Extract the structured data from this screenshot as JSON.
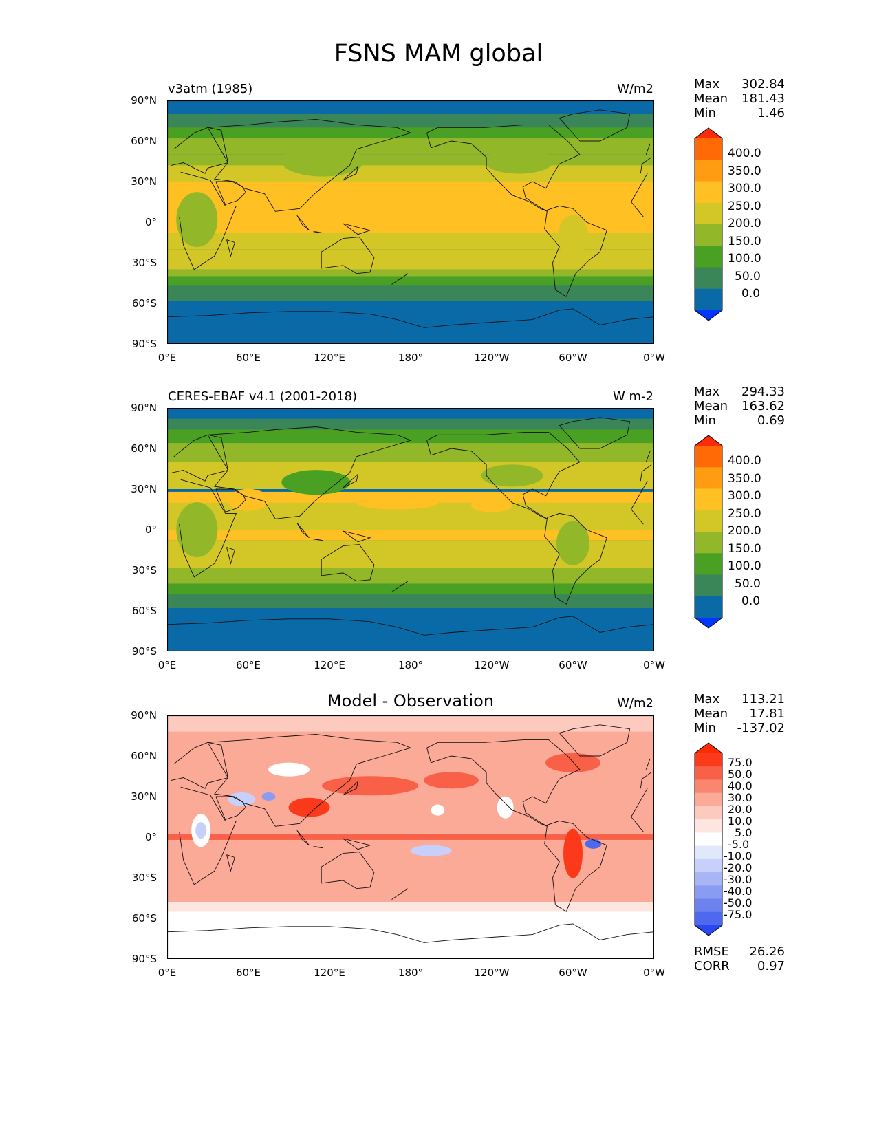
{
  "figure": {
    "title": "FSNS MAM global"
  },
  "axes": {
    "lat_labels": [
      "90°N",
      "60°N",
      "30°N",
      "0°",
      "30°S",
      "60°S",
      "90°S"
    ],
    "lon_labels": [
      "0°E",
      "60°E",
      "120°E",
      "180°",
      "120°W",
      "60°W",
      "0°W"
    ]
  },
  "panels": [
    {
      "left_title": "v3atm (1985)",
      "center_title": "",
      "units": "W/m2",
      "stats": [
        {
          "k": "Max",
          "v": "302.84"
        },
        {
          "k": "Mean",
          "v": "181.43"
        },
        {
          "k": "Min",
          "v": "1.46"
        }
      ],
      "colorbar": {
        "labels": [
          "400.0",
          "350.0",
          "300.0",
          "250.0",
          "200.0",
          "150.0",
          "100.0",
          "50.0",
          "0.0"
        ],
        "colors": [
          "#ff2a08",
          "#ff6a06",
          "#ff9c12",
          "#fec022",
          "#d2c726",
          "#92b82a",
          "#4aa022",
          "#3a8658",
          "#0a6aa8",
          "#0036ff"
        ]
      },
      "extra": []
    },
    {
      "left_title": "CERES-EBAF v4.1 (2001-2018)",
      "center_title": "",
      "units": "W m-2",
      "stats": [
        {
          "k": "Max",
          "v": "294.33"
        },
        {
          "k": "Mean",
          "v": "163.62"
        },
        {
          "k": "Min",
          "v": "0.69"
        }
      ],
      "colorbar": {
        "labels": [
          "400.0",
          "350.0",
          "300.0",
          "250.0",
          "200.0",
          "150.0",
          "100.0",
          "50.0",
          "0.0"
        ],
        "colors": [
          "#ff2a08",
          "#ff6a06",
          "#ff9c12",
          "#fec022",
          "#d2c726",
          "#92b82a",
          "#4aa022",
          "#3a8658",
          "#0a6aa8",
          "#0036ff"
        ]
      },
      "extra": []
    },
    {
      "left_title": "",
      "center_title": "Model - Observation",
      "units": "W/m2",
      "stats": [
        {
          "k": "Max",
          "v": "113.21"
        },
        {
          "k": "Mean",
          "v": "17.81"
        },
        {
          "k": "Min",
          "v": "-137.02"
        }
      ],
      "colorbar": {
        "labels": [
          "75.0",
          "50.0",
          "40.0",
          "30.0",
          "20.0",
          "10.0",
          "5.0",
          "-5.0",
          "-10.0",
          "-20.0",
          "-30.0",
          "-40.0",
          "-50.0",
          "-75.0"
        ],
        "colors": [
          "#ff2a00",
          "#fb3a1c",
          "#f96048",
          "#fa8670",
          "#fcaa98",
          "#fdcac0",
          "#fee6e0",
          "#ffffff",
          "#e2e8fc",
          "#c6d0fa",
          "#a8b6f6",
          "#8a9cf2",
          "#6c82ee",
          "#4e68ee",
          "#2a48f2"
        ]
      },
      "extra": [
        {
          "k": "RMSE",
          "v": "26.26"
        },
        {
          "k": "CORR",
          "v": "0.97"
        }
      ]
    }
  ],
  "map_colors": {
    "seq": [
      "#0a6aa8",
      "#3a8658",
      "#4aa022",
      "#92b82a",
      "#d2c726",
      "#fec022",
      "#ff9c12"
    ],
    "diff_pos": [
      "#fee6e0",
      "#fdcac0",
      "#fcaa98",
      "#fa8670",
      "#f96048",
      "#fb3a1c"
    ],
    "diff_neg": [
      "#c6d0fa",
      "#8a9cf2",
      "#4e68ee"
    ]
  }
}
